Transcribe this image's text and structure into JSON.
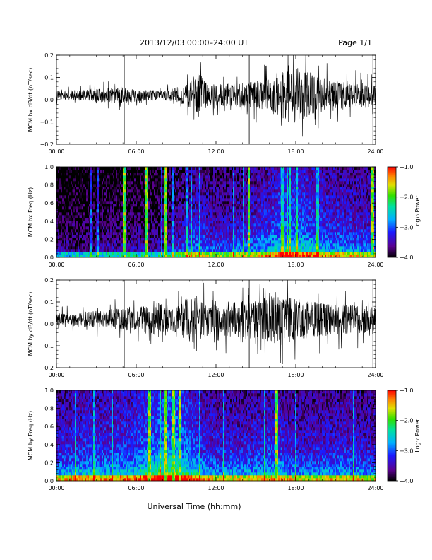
{
  "header": {
    "title": "2013/12/03  00:00–24:00 UT",
    "page": "Page 1/1"
  },
  "footer": {
    "xlabel": "Universal Time (hh:mm)"
  },
  "chart_data": [
    {
      "type": "line",
      "panel": "bx-derivative",
      "ylabel": "MCM bx dB/dt (nT/sec)",
      "xlim": [
        0,
        24
      ],
      "ylim": [
        -0.2,
        0.2
      ],
      "x_tick_labels": [
        "00:00",
        "06:00",
        "12:00",
        "18:00",
        "24:00"
      ],
      "y_tick_labels": [
        "0.2",
        "0.1",
        "0.0",
        "−0.1",
        "−0.2"
      ],
      "amplitude_envelope": {
        "x_hours": [
          0,
          2,
          4,
          5.2,
          6,
          8,
          9.6,
          10.2,
          10.7,
          11.5,
          12,
          13,
          14,
          15,
          16,
          17,
          17.5,
          18,
          18.5,
          19,
          20,
          21,
          22,
          23,
          24
        ],
        "amplitude": [
          0.03,
          0.035,
          0.05,
          0.05,
          0.04,
          0.03,
          0.06,
          0.1,
          0.14,
          0.07,
          0.07,
          0.08,
          0.08,
          0.09,
          0.12,
          0.15,
          0.2,
          0.18,
          0.16,
          0.15,
          0.11,
          0.1,
          0.09,
          0.08,
          0.07
        ]
      },
      "vertical_markers_hours": [
        5.1,
        14.5,
        23.8
      ]
    },
    {
      "type": "heatmap",
      "panel": "bx-spectrogram",
      "ylabel": "MCM bx Freq (Hz)",
      "xlim": [
        0,
        24
      ],
      "ylim": [
        0,
        1.0
      ],
      "x_tick_labels": [
        "00:00",
        "06:00",
        "12:00",
        "18:00",
        "24:00"
      ],
      "y_tick_labels": [
        "1.0",
        "0.8",
        "0.6",
        "0.4",
        "0.2",
        "0.0"
      ],
      "colorbar": {
        "label": "Log₁₀ Power",
        "range": [
          -4.0,
          -1.0
        ],
        "tick_labels": [
          "−1.0",
          "−2.0",
          "−3.0",
          "−4.0"
        ]
      },
      "activity_hours": [
        0,
        2,
        4,
        6,
        8,
        9.6,
        10.5,
        12,
        14,
        16,
        17,
        18,
        19,
        20,
        22,
        24
      ],
      "activity_level": [
        0.15,
        0.15,
        0.2,
        0.2,
        0.2,
        0.35,
        0.45,
        0.35,
        0.4,
        0.5,
        0.6,
        0.6,
        0.55,
        0.5,
        0.45,
        0.4
      ],
      "bright_stripes_hours": [
        5.1,
        6.8,
        8.2,
        14.5,
        23.8
      ]
    },
    {
      "type": "line",
      "panel": "by-derivative",
      "ylabel": "MCM by dB/dt (nT/sec)",
      "xlim": [
        0,
        24
      ],
      "ylim": [
        -0.2,
        0.2
      ],
      "x_tick_labels": [
        "00:00",
        "06:00",
        "12:00",
        "18:00",
        "24:00"
      ],
      "y_tick_labels": [
        "0.2",
        "0.1",
        "0.0",
        "−0.1",
        "−0.2"
      ],
      "amplitude_envelope": {
        "x_hours": [
          0,
          2,
          4,
          5.2,
          6,
          7,
          8,
          9,
          9.8,
          10.5,
          11.5,
          12,
          13,
          14,
          15,
          16,
          17,
          18,
          19,
          20,
          21,
          22,
          23,
          24
        ],
        "amplitude": [
          0.04,
          0.05,
          0.06,
          0.08,
          0.07,
          0.1,
          0.12,
          0.08,
          0.14,
          0.16,
          0.1,
          0.1,
          0.12,
          0.12,
          0.12,
          0.15,
          0.17,
          0.14,
          0.12,
          0.11,
          0.1,
          0.1,
          0.09,
          0.08
        ]
      },
      "vertical_markers_hours": [
        5.1,
        14.5,
        23.8
      ]
    },
    {
      "type": "heatmap",
      "panel": "by-spectrogram",
      "ylabel": "MCM by Freq (Hz)",
      "xlim": [
        0,
        24
      ],
      "ylim": [
        0,
        1.0
      ],
      "x_tick_labels": [
        "00:00",
        "06:00",
        "12:00",
        "18:00",
        "24:00"
      ],
      "y_tick_labels": [
        "1.0",
        "0.8",
        "0.6",
        "0.4",
        "0.2",
        "0.0"
      ],
      "colorbar": {
        "label": "Log₁₀ Power",
        "range": [
          -4.0,
          -1.0
        ],
        "tick_labels": [
          "−1.0",
          "−2.0",
          "−3.0",
          "−4.0"
        ]
      },
      "activity_hours": [
        0,
        2,
        4,
        6,
        7,
        8,
        9,
        10,
        11,
        12,
        14,
        16,
        17,
        18,
        20,
        22,
        24
      ],
      "activity_level": [
        0.45,
        0.5,
        0.5,
        0.55,
        0.65,
        0.7,
        0.75,
        0.6,
        0.5,
        0.45,
        0.45,
        0.5,
        0.5,
        0.4,
        0.45,
        0.45,
        0.4
      ],
      "bright_stripes_hours": [
        7.0,
        8.2,
        8.8,
        9.3,
        16.6
      ]
    }
  ]
}
